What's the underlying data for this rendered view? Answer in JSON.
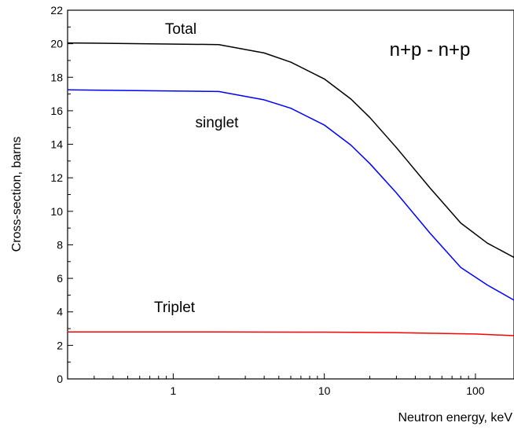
{
  "chart_data": {
    "type": "line",
    "title": "n+p - n+p",
    "xlabel": "Neutron energy, keV",
    "ylabel": "Cross-section, barns",
    "xscale": "log",
    "xlim": [
      0.2,
      180
    ],
    "ylim": [
      0,
      22
    ],
    "grid": false,
    "x_major_ticks": [
      1,
      10,
      100
    ],
    "x_tick_labels": [
      "1",
      "10",
      "100"
    ],
    "y_major_ticks": [
      0,
      2,
      4,
      6,
      8,
      10,
      12,
      14,
      16,
      18,
      20,
      22
    ],
    "y_tick_labels": [
      "0",
      "2",
      "4",
      "6",
      "8",
      "10",
      "12",
      "14",
      "16",
      "18",
      "20",
      "22"
    ],
    "series": [
      {
        "name": "Total",
        "color": "#000000",
        "x": [
          0.2,
          2,
          4,
          6,
          10,
          15,
          20,
          30,
          50,
          80,
          120,
          180
        ],
        "y": [
          20.05,
          19.95,
          19.45,
          18.9,
          17.9,
          16.7,
          15.6,
          13.8,
          11.4,
          9.3,
          8.1,
          7.25
        ]
      },
      {
        "name": "singlet",
        "color": "#0000ff",
        "x": [
          0.2,
          2,
          4,
          6,
          10,
          15,
          20,
          30,
          50,
          80,
          120,
          180
        ],
        "y": [
          17.25,
          17.15,
          16.65,
          16.15,
          15.15,
          13.95,
          12.85,
          11.1,
          8.7,
          6.65,
          5.6,
          4.7
        ]
      },
      {
        "name": "Triplet",
        "color": "#ff0000",
        "x": [
          0.2,
          2,
          10,
          30,
          100,
          180
        ],
        "y": [
          2.8,
          2.8,
          2.79,
          2.76,
          2.68,
          2.58
        ]
      }
    ],
    "annotations": [
      {
        "text": "Total",
        "series": "Total"
      },
      {
        "text": "singlet",
        "series": "singlet"
      },
      {
        "text": "Triplet",
        "series": "Triplet"
      },
      {
        "text": "n+p - n+p",
        "role": "title"
      }
    ]
  }
}
